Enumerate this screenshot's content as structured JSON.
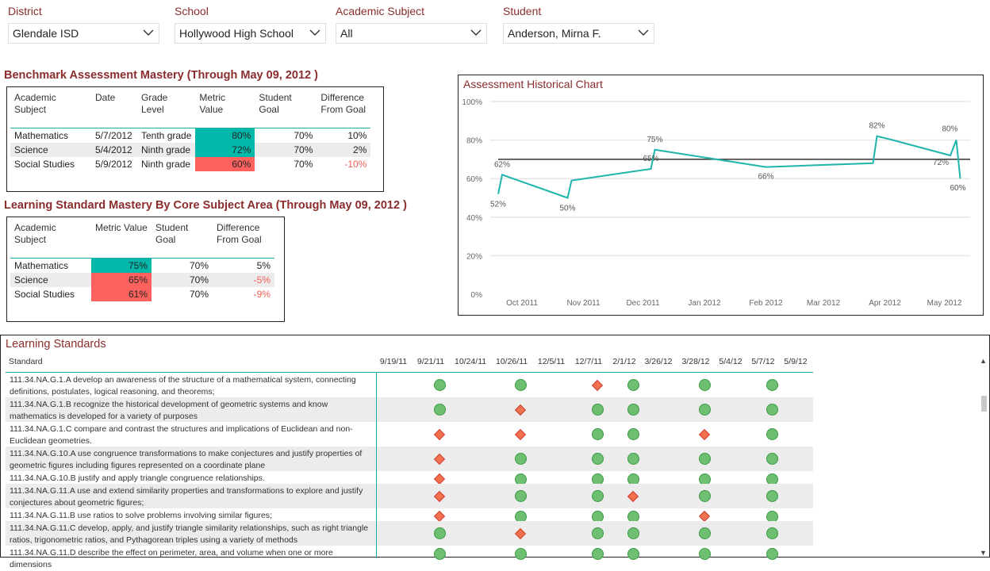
{
  "slicers": [
    {
      "label": "District",
      "value": "Glendale ISD"
    },
    {
      "label": "School",
      "value": "Hollywood High School"
    },
    {
      "label": "Academic Subject",
      "value": "All"
    },
    {
      "label": "Student",
      "value": "Anderson, Mirna F."
    }
  ],
  "benchmark": {
    "title": "Benchmark Assessment Mastery (Through May 09, 2012 )",
    "headers": [
      "Academic Subject",
      "Date",
      "Grade Level",
      "Metric Value",
      "Student Goal",
      "Difference From Goal"
    ],
    "rows": [
      {
        "subject": "Mathematics",
        "date": "5/7/2012",
        "grade": "Tenth grade",
        "metric": "80%",
        "goal": "70%",
        "diff": "10%",
        "status": "good"
      },
      {
        "subject": "Science",
        "date": "5/4/2012",
        "grade": "Ninth grade",
        "metric": "72%",
        "goal": "70%",
        "diff": "2%",
        "status": "good"
      },
      {
        "subject": "Social Studies",
        "date": "5/9/2012",
        "grade": "Ninth grade",
        "metric": "60%",
        "goal": "70%",
        "diff": "-10%",
        "status": "bad"
      }
    ]
  },
  "learning_mastery": {
    "title": "Learning Standard Mastery By Core Subject Area (Through May 09, 2012 )",
    "headers": [
      "Academic Subject",
      "Metric Value",
      "Student Goal",
      "Difference From Goal"
    ],
    "rows": [
      {
        "subject": "Mathematics",
        "metric": "75%",
        "goal": "70%",
        "diff": "5%",
        "status": "good"
      },
      {
        "subject": "Science",
        "metric": "65%",
        "goal": "70%",
        "diff": "-5%",
        "status": "bad"
      },
      {
        "subject": "Social Studies",
        "metric": "61%",
        "goal": "70%",
        "diff": "-9%",
        "status": "bad"
      }
    ]
  },
  "chart_data": {
    "type": "line",
    "title": "Assessment Historical Chart",
    "x": [
      "2011-09-19",
      "2011-09-21",
      "2011-10-24",
      "2011-10-26",
      "2011-12-05",
      "2011-12-07",
      "2012-02-01",
      "2012-03-26",
      "2012-03-28",
      "2012-04-05",
      "2012-05-04",
      "2012-05-07",
      "2012-05-09"
    ],
    "series": [
      {
        "values": [
          52,
          62,
          50,
          59,
          65,
          75,
          66,
          68,
          82,
          80,
          72,
          80,
          60
        ],
        "color": "#1fb5ad"
      }
    ],
    "goal_line": 70,
    "data_labels": [
      {
        "x": "2011-09-19",
        "text": "52%"
      },
      {
        "x": "2011-09-21",
        "text": "62%"
      },
      {
        "x": "2011-10-24",
        "text": "50%"
      },
      {
        "x": "2011-12-05",
        "text": "65%"
      },
      {
        "x": "2011-12-07",
        "text": "75%"
      },
      {
        "x": "2012-02-01",
        "text": "66%"
      },
      {
        "x": "2012-03-28",
        "text": "82%"
      },
      {
        "x": "2012-05-04",
        "text": "72%"
      },
      {
        "x": "2012-05-07",
        "text": "80%"
      },
      {
        "x": "2012-05-09",
        "text": "60%"
      }
    ],
    "yticks": [
      "100%",
      "80%",
      "60%",
      "40%",
      "20%",
      "0%"
    ],
    "xticks": [
      "Oct 2011",
      "Nov 2011",
      "Dec 2011",
      "Jan 2012",
      "Feb 2012",
      "Mar 2012",
      "Apr 2012",
      "May 2012"
    ],
    "ylim": [
      0,
      100
    ],
    "grid": true
  },
  "learning_standards": {
    "title": "Learning Standards",
    "standard_header": "Standard",
    "dates": [
      "9/19/11",
      "9/21/11",
      "10/24/11",
      "10/26/11",
      "12/5/11",
      "12/7/11",
      "2/1/12",
      "3/26/12",
      "3/28/12",
      "5/4/12",
      "5/7/12",
      "5/9/12"
    ],
    "rows": [
      {
        "text": "111.34.NA.G.1.A develop an awareness of the structure of a mathematical system, connecting definitions, postulates, logical reasoning, and theorems;",
        "marks": [
          "",
          "mastered",
          "",
          "mastered",
          "",
          "not-mastered",
          "mastered",
          "",
          "mastered",
          "",
          "mastered",
          ""
        ]
      },
      {
        "text": "111.34.NA.G.1.B recognize the historical development of geometric systems and know mathematics is developed for a variety of purposes",
        "marks": [
          "",
          "mastered",
          "",
          "not-mastered",
          "",
          "mastered",
          "mastered",
          "",
          "mastered",
          "",
          "mastered",
          ""
        ]
      },
      {
        "text": "111.34.NA.G.1.C compare and contrast the structures and implications of Euclidean and non-Euclidean geometries.",
        "marks": [
          "",
          "not-mastered",
          "",
          "not-mastered",
          "",
          "mastered",
          "mastered",
          "",
          "not-mastered",
          "",
          "mastered",
          ""
        ]
      },
      {
        "text": "111.34.NA.G.10.A use congruence transformations to make conjectures and justify properties of geometric figures including figures represented on a coordinate plane",
        "marks": [
          "",
          "not-mastered",
          "",
          "mastered",
          "",
          "mastered",
          "mastered",
          "",
          "mastered",
          "",
          "mastered",
          ""
        ]
      },
      {
        "text": "111.34.NA.G.10.B justify and apply triangle congruence relationships.",
        "marks": [
          "",
          "not-mastered",
          "",
          "mastered",
          "",
          "mastered",
          "mastered",
          "",
          "mastered",
          "",
          "mastered",
          ""
        ]
      },
      {
        "text": "111.34.NA.G.11.A use and extend similarity properties and transformations to explore and justify conjectures about geometric figures;",
        "marks": [
          "",
          "not-mastered",
          "",
          "mastered",
          "",
          "mastered",
          "not-mastered",
          "",
          "mastered",
          "",
          "mastered",
          ""
        ]
      },
      {
        "text": "111.34.NA.G.11.B use ratios to solve problems involving similar figures;",
        "marks": [
          "",
          "not-mastered",
          "",
          "mastered",
          "",
          "mastered",
          "mastered",
          "",
          "not-mastered",
          "",
          "mastered",
          ""
        ]
      },
      {
        "text": "111.34.NA.G.11.C develop, apply, and justify triangle similarity relationships, such as right triangle ratios, trigonometric ratios, and Pythagorean triples using a variety of methods",
        "marks": [
          "",
          "mastered",
          "",
          "not-mastered",
          "",
          "mastered",
          "mastered",
          "",
          "mastered",
          "",
          "mastered",
          ""
        ]
      },
      {
        "text": "111.34.NA.G.11.D describe the effect on perimeter, area, and volume when one or more dimensions",
        "marks": [
          "",
          "mastered",
          "",
          "mastered",
          "",
          "mastered",
          "mastered",
          "",
          "mastered",
          "",
          "mastered",
          ""
        ]
      }
    ]
  },
  "colors": {
    "title": "#8b2d2d",
    "good": "#01b8aa",
    "bad": "#fd625e",
    "line": "#1fb5ad",
    "goal": "#333333",
    "mastered": "#6fbf73",
    "not_mastered": "#f07050"
  },
  "icons": {
    "dropdown": "chevron-down-icon",
    "scroll_up": "caret-up-icon",
    "scroll_down": "caret-down-icon"
  }
}
